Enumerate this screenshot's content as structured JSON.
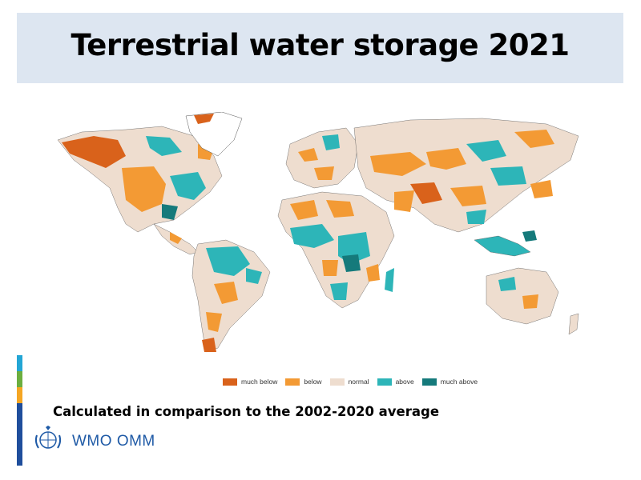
{
  "title": "Terrestrial water storage 2021",
  "subtitle": "Calculated in comparison to the 2002-2020 average",
  "logo_text": "WMO OMM",
  "legend": [
    {
      "label": "much below",
      "color": "#d9621b"
    },
    {
      "label": "below",
      "color": "#f39a34"
    },
    {
      "label": "normal",
      "color": "#eeddcf"
    },
    {
      "label": "above",
      "color": "#2db5b8"
    },
    {
      "label": "much above",
      "color": "#157a7b"
    }
  ],
  "colors": {
    "title_band": "#dde6f1",
    "accent_bar": [
      "#23a6d5",
      "#6cae3f",
      "#f5a623",
      "#1f4e9c"
    ],
    "logo": "#1f5aa6"
  }
}
